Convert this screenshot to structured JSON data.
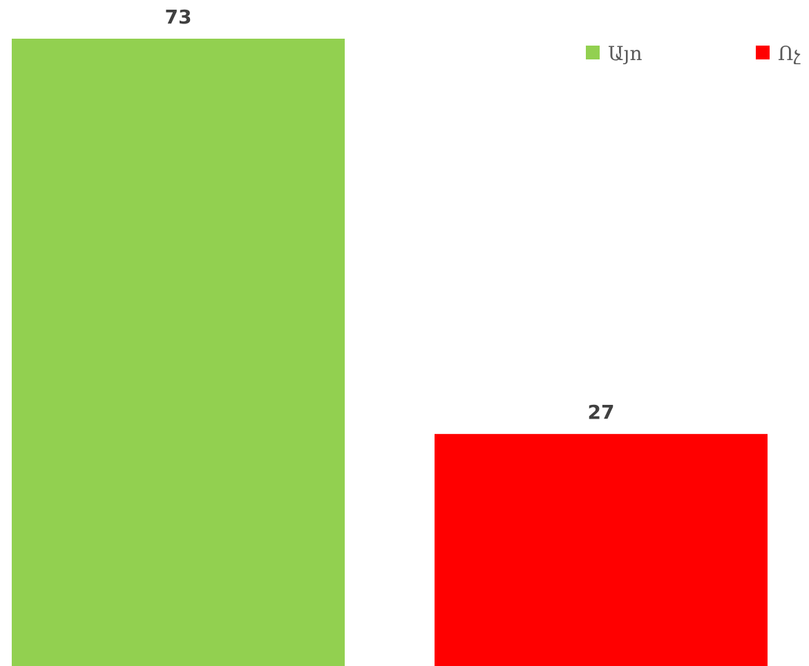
{
  "chart_data": {
    "type": "bar",
    "categories": [
      "Այո",
      "Ոչ"
    ],
    "values": [
      73,
      27
    ],
    "colors": [
      "#92d050",
      "#ff0000"
    ],
    "ylim": [
      0,
      73
    ],
    "grid": false,
    "show_data_labels": true,
    "legend": {
      "position": "top-right",
      "entries": [
        {
          "label": "Այո",
          "color": "#92d050"
        },
        {
          "label": "Ոչ",
          "color": "#ff0000"
        }
      ]
    }
  }
}
